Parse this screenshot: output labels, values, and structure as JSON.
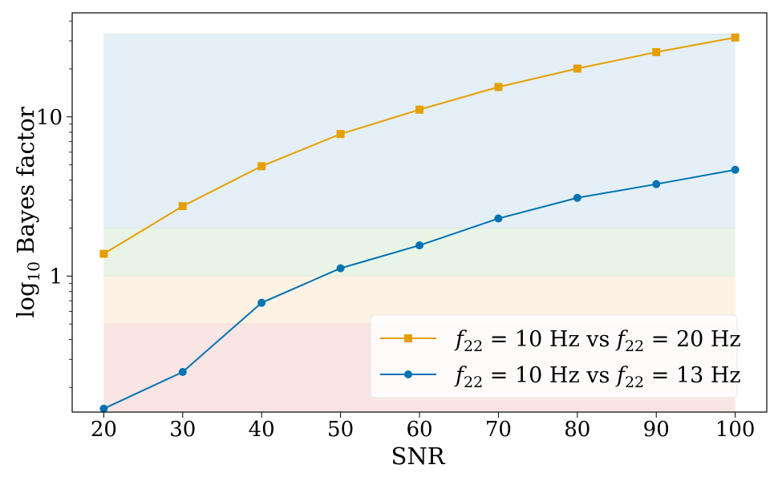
{
  "chart_data": {
    "type": "line",
    "xlabel": "SNR",
    "ylabel": "log10 Bayes factor",
    "ylabel_parts": {
      "base": "log",
      "sub": "10",
      "rest": "Bayes factor"
    },
    "yscale": "log",
    "xlim": [
      16,
      104
    ],
    "ylim": [
      0.14,
      45
    ],
    "xticks": [
      20,
      30,
      40,
      50,
      60,
      70,
      80,
      90,
      100
    ],
    "xtick_labels": [
      "20",
      "30",
      "40",
      "50",
      "60",
      "70",
      "80",
      "90",
      "100"
    ],
    "yticks": [
      1,
      10
    ],
    "ytick_labels": [
      "1",
      "10"
    ],
    "legend_position": "lower-right",
    "bands": [
      {
        "from": 0.1,
        "to": 0.5,
        "color": "#f8d7d7"
      },
      {
        "from": 0.5,
        "to": 1.0,
        "color": "#fdebd6"
      },
      {
        "from": 1.0,
        "to": 2.0,
        "color": "#dbeed9"
      },
      {
        "from": 2.0,
        "to": 33,
        "color": "#d6e6f3"
      }
    ],
    "series": [
      {
        "legend": {
          "lhs": "f",
          "lhs_sub": "22",
          "eq": " = 10 Hz vs ",
          "rhs": "f",
          "rhs_sub": "22",
          "eq2": " = 20 Hz"
        },
        "color": "#e69f00",
        "marker": "square",
        "x": [
          20,
          30,
          40,
          50,
          60,
          70,
          80,
          90,
          100
        ],
        "values": [
          1.38,
          2.75,
          4.9,
          7.8,
          11.1,
          15.4,
          20.1,
          25.5,
          31.5
        ]
      },
      {
        "legend": {
          "lhs": "f",
          "lhs_sub": "22",
          "eq": " = 10 Hz vs ",
          "rhs": "f",
          "rhs_sub": "22",
          "eq2": " = 13 Hz"
        },
        "color": "#0072b2",
        "marker": "circle",
        "x": [
          20,
          30,
          40,
          50,
          60,
          70,
          80,
          90,
          100
        ],
        "values": [
          0.147,
          0.25,
          0.68,
          1.12,
          1.56,
          2.3,
          3.1,
          3.78,
          4.65
        ]
      }
    ]
  }
}
